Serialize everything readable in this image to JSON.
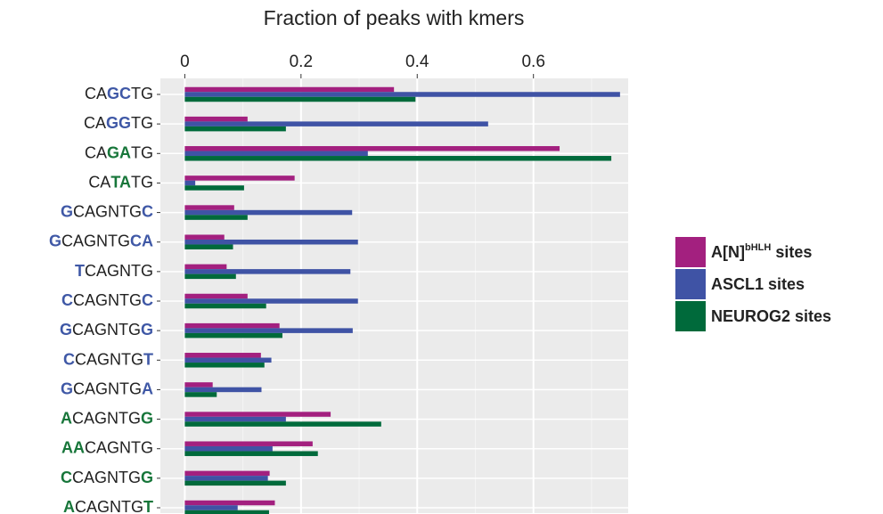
{
  "chart_data": {
    "type": "bar",
    "orientation": "horizontal",
    "title": "Fraction of peaks with kmers",
    "categories": [
      [
        {
          "text": "CA",
          "color": "#222222"
        },
        {
          "text": "GC",
          "color": "#3f58a6"
        },
        {
          "text": "TG",
          "color": "#222222"
        }
      ],
      [
        {
          "text": "CA",
          "color": "#222222"
        },
        {
          "text": "GG",
          "color": "#3f58a6"
        },
        {
          "text": "TG",
          "color": "#222222"
        }
      ],
      [
        {
          "text": "CA",
          "color": "#222222"
        },
        {
          "text": "GA",
          "color": "#17763a"
        },
        {
          "text": "TG",
          "color": "#222222"
        }
      ],
      [
        {
          "text": "CA",
          "color": "#222222"
        },
        {
          "text": "TA",
          "color": "#17763a"
        },
        {
          "text": "TG",
          "color": "#222222"
        }
      ],
      [
        {
          "text": "G",
          "color": "#3f58a6"
        },
        {
          "text": "CAGNTG",
          "color": "#222222"
        },
        {
          "text": "C",
          "color": "#3f58a6"
        }
      ],
      [
        {
          "text": "G",
          "color": "#3f58a6"
        },
        {
          "text": "CAGNTG",
          "color": "#222222"
        },
        {
          "text": "CA",
          "color": "#3f58a6"
        }
      ],
      [
        {
          "text": "T",
          "color": "#3f58a6"
        },
        {
          "text": "CAGNTG",
          "color": "#222222"
        }
      ],
      [
        {
          "text": "C",
          "color": "#3f58a6"
        },
        {
          "text": "CAGNTG",
          "color": "#222222"
        },
        {
          "text": "C",
          "color": "#3f58a6"
        }
      ],
      [
        {
          "text": "G",
          "color": "#3f58a6"
        },
        {
          "text": "CAGNTG",
          "color": "#222222"
        },
        {
          "text": "G",
          "color": "#3f58a6"
        }
      ],
      [
        {
          "text": "C",
          "color": "#3f58a6"
        },
        {
          "text": "CAGNTG",
          "color": "#222222"
        },
        {
          "text": "T",
          "color": "#3f58a6"
        }
      ],
      [
        {
          "text": "G",
          "color": "#3f58a6"
        },
        {
          "text": "CAGNTG",
          "color": "#222222"
        },
        {
          "text": "A",
          "color": "#3f58a6"
        }
      ],
      [
        {
          "text": "A",
          "color": "#17763a"
        },
        {
          "text": "CAGNTG",
          "color": "#222222"
        },
        {
          "text": "G",
          "color": "#17763a"
        }
      ],
      [
        {
          "text": "AA",
          "color": "#17763a"
        },
        {
          "text": "CAGNTG",
          "color": "#222222"
        }
      ],
      [
        {
          "text": "C",
          "color": "#17763a"
        },
        {
          "text": "CAGNTG",
          "color": "#222222"
        },
        {
          "text": "G",
          "color": "#17763a"
        }
      ],
      [
        {
          "text": "A",
          "color": "#17763a"
        },
        {
          "text": "CAGNTG",
          "color": "#222222"
        },
        {
          "text": "T",
          "color": "#17763a"
        }
      ]
    ],
    "series": [
      {
        "name": [
          {
            "text": "A[N]"
          },
          {
            "text": "bHLH",
            "sup": true
          },
          {
            "text": " sites"
          }
        ],
        "color": "#a3207f",
        "values": [
          0.36,
          0.108,
          0.645,
          0.189,
          0.085,
          0.068,
          0.072,
          0.108,
          0.163,
          0.131,
          0.048,
          0.251,
          0.22,
          0.146,
          0.155
        ]
      },
      {
        "name": [
          {
            "text": "ASCL1 sites"
          }
        ],
        "color": "#3f53a5",
        "values": [
          0.749,
          0.522,
          0.315,
          0.018,
          0.288,
          0.298,
          0.285,
          0.298,
          0.289,
          0.149,
          0.132,
          0.174,
          0.151,
          0.143,
          0.091
        ]
      },
      {
        "name": [
          {
            "text": "NEUROG2 sites"
          }
        ],
        "color": "#006a3b",
        "values": [
          0.397,
          0.174,
          0.734,
          0.102,
          0.108,
          0.083,
          0.088,
          0.14,
          0.168,
          0.137,
          0.055,
          0.338,
          0.229,
          0.174,
          0.145
        ]
      }
    ],
    "xlim": [
      -0.042,
      0.763
    ],
    "xticks": [
      0,
      0.2,
      0.4,
      0.6
    ],
    "xminor": [
      0.1,
      0.3,
      0.5,
      0.7
    ],
    "grid": true,
    "legend": "right"
  }
}
